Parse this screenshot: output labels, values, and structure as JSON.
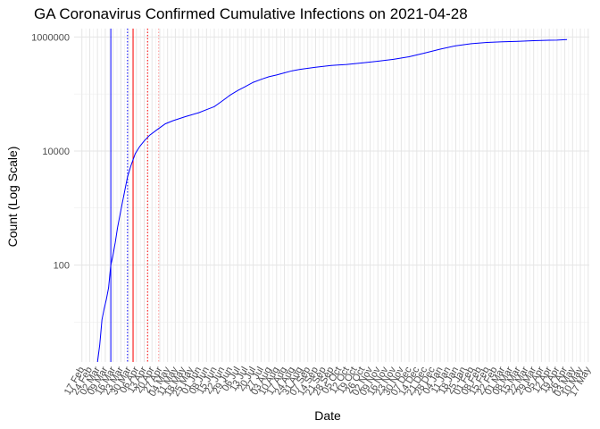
{
  "chart_data": {
    "type": "line",
    "title": "GA Coronavirus Confirmed Cumulative Infections on 2021-04-28",
    "xlabel": "Date",
    "ylabel": "Count (Log Scale)",
    "y_scale": "log10",
    "ylim": [
      2,
      1400000
    ],
    "xlim": [
      "2020-02-10",
      "2021-05-18"
    ],
    "grid": true,
    "colors": {
      "series": "#0000ff",
      "vline_blue": "#0000ff",
      "vline_red": "#ff0000",
      "minor_grid": "#ebebeb",
      "major_grid": "#e5e5e5"
    },
    "y_ticks": [
      {
        "value": 100,
        "label": "100"
      },
      {
        "value": 10000,
        "label": "10000"
      },
      {
        "value": 1000000,
        "label": "1000000"
      }
    ],
    "x_ticks": [
      {
        "date": "2020-02-17",
        "label": "17 Feb"
      },
      {
        "date": "2020-02-24",
        "label": "24 Feb"
      },
      {
        "date": "2020-03-02",
        "label": "02 Mar"
      },
      {
        "date": "2020-03-09",
        "label": "09 Mar"
      },
      {
        "date": "2020-03-16",
        "label": "16 Mar"
      },
      {
        "date": "2020-03-23",
        "label": "23 Mar"
      },
      {
        "date": "2020-03-30",
        "label": "30 Mar"
      },
      {
        "date": "2020-04-06",
        "label": "06 Apr"
      },
      {
        "date": "2020-04-13",
        "label": "13 Apr"
      },
      {
        "date": "2020-04-20",
        "label": "20 Apr"
      },
      {
        "date": "2020-04-27",
        "label": "27 Apr"
      },
      {
        "date": "2020-05-04",
        "label": "04 May"
      },
      {
        "date": "2020-05-11",
        "label": "11 May"
      },
      {
        "date": "2020-05-18",
        "label": "18 May"
      },
      {
        "date": "2020-05-25",
        "label": "25 May"
      },
      {
        "date": "2020-06-01",
        "label": "01 Jun"
      },
      {
        "date": "2020-06-08",
        "label": "08 Jun"
      },
      {
        "date": "2020-06-15",
        "label": "15 Jun"
      },
      {
        "date": "2020-06-22",
        "label": "22 Jun"
      },
      {
        "date": "2020-06-29",
        "label": "29 Jun"
      },
      {
        "date": "2020-07-06",
        "label": "06 Jul"
      },
      {
        "date": "2020-07-13",
        "label": "13 Jul"
      },
      {
        "date": "2020-07-20",
        "label": "20 Jul"
      },
      {
        "date": "2020-07-27",
        "label": "27 Jul"
      },
      {
        "date": "2020-08-03",
        "label": "03 Aug"
      },
      {
        "date": "2020-08-10",
        "label": "10 Aug"
      },
      {
        "date": "2020-08-17",
        "label": "17 Aug"
      },
      {
        "date": "2020-08-24",
        "label": "24 Aug"
      },
      {
        "date": "2020-08-31",
        "label": "31 Aug"
      },
      {
        "date": "2020-09-07",
        "label": "07 Sep"
      },
      {
        "date": "2020-09-14",
        "label": "14 Sep"
      },
      {
        "date": "2020-09-21",
        "label": "21 Sep"
      },
      {
        "date": "2020-09-28",
        "label": "28 Sep"
      },
      {
        "date": "2020-10-05",
        "label": "05 Oct"
      },
      {
        "date": "2020-10-12",
        "label": "12 Oct"
      },
      {
        "date": "2020-10-19",
        "label": "19 Oct"
      },
      {
        "date": "2020-10-26",
        "label": "26 Oct"
      },
      {
        "date": "2020-11-02",
        "label": "02 Nov"
      },
      {
        "date": "2020-11-09",
        "label": "09 Nov"
      },
      {
        "date": "2020-11-16",
        "label": "16 Nov"
      },
      {
        "date": "2020-11-23",
        "label": "23 Nov"
      },
      {
        "date": "2020-11-30",
        "label": "30 Nov"
      },
      {
        "date": "2020-12-07",
        "label": "07 Dec"
      },
      {
        "date": "2020-12-14",
        "label": "14 Dec"
      },
      {
        "date": "2020-12-21",
        "label": "21 Dec"
      },
      {
        "date": "2020-12-28",
        "label": "28 Dec"
      },
      {
        "date": "2021-01-04",
        "label": "04 Jan"
      },
      {
        "date": "2021-01-11",
        "label": "11 Jan"
      },
      {
        "date": "2021-01-18",
        "label": "18 Jan"
      },
      {
        "date": "2021-01-25",
        "label": "25 Jan"
      },
      {
        "date": "2021-02-01",
        "label": "01 Feb"
      },
      {
        "date": "2021-02-08",
        "label": "08 Feb"
      },
      {
        "date": "2021-02-15",
        "label": "15 Feb"
      },
      {
        "date": "2021-02-22",
        "label": "22 Feb"
      },
      {
        "date": "2021-03-01",
        "label": "01 Mar"
      },
      {
        "date": "2021-03-08",
        "label": "08 Mar"
      },
      {
        "date": "2021-03-15",
        "label": "15 Mar"
      },
      {
        "date": "2021-03-22",
        "label": "22 Mar"
      },
      {
        "date": "2021-03-29",
        "label": "29 Mar"
      },
      {
        "date": "2021-04-05",
        "label": "05 Apr"
      },
      {
        "date": "2021-04-12",
        "label": "12 Apr"
      },
      {
        "date": "2021-04-19",
        "label": "19 Apr"
      },
      {
        "date": "2021-04-26",
        "label": "26 Apr"
      },
      {
        "date": "2021-05-03",
        "label": "03 May"
      },
      {
        "date": "2021-05-10",
        "label": "10 May"
      },
      {
        "date": "2021-05-17",
        "label": "17 May"
      }
    ],
    "vlines": [
      {
        "date": "2020-03-14",
        "color": "#0000ff",
        "style": "solid"
      },
      {
        "date": "2020-03-29",
        "color": "#0000ff",
        "style": "dotted"
      },
      {
        "date": "2020-04-03",
        "color": "#ff0000",
        "style": "solid"
      },
      {
        "date": "2020-04-16",
        "color": "#ff0000",
        "style": "dotted"
      },
      {
        "date": "2020-04-26",
        "color": "#ff9999",
        "style": "dotted"
      }
    ],
    "series": [
      {
        "color": "#0000ff",
        "points": [
          [
            "2020-03-02",
            2
          ],
          [
            "2020-03-04",
            4
          ],
          [
            "2020-03-06",
            11
          ],
          [
            "2020-03-08",
            17
          ],
          [
            "2020-03-10",
            25
          ],
          [
            "2020-03-12",
            40
          ],
          [
            "2020-03-14",
            100
          ],
          [
            "2020-03-16",
            150
          ],
          [
            "2020-03-18",
            250
          ],
          [
            "2020-03-20",
            450
          ],
          [
            "2020-03-23",
            900
          ],
          [
            "2020-03-26",
            1800
          ],
          [
            "2020-03-29",
            3500
          ],
          [
            "2020-04-01",
            5500
          ],
          [
            "2020-04-05",
            9000
          ],
          [
            "2020-04-09",
            12000
          ],
          [
            "2020-04-13",
            15000
          ],
          [
            "2020-04-18",
            19000
          ],
          [
            "2020-04-25",
            24000
          ],
          [
            "2020-05-02",
            30000
          ],
          [
            "2020-05-09",
            34000
          ],
          [
            "2020-05-20",
            40000
          ],
          [
            "2020-06-01",
            47000
          ],
          [
            "2020-06-08",
            53000
          ],
          [
            "2020-06-15",
            60000
          ],
          [
            "2020-06-22",
            75000
          ],
          [
            "2020-06-29",
            95000
          ],
          [
            "2020-07-06",
            115000
          ],
          [
            "2020-07-13",
            135000
          ],
          [
            "2020-07-20",
            160000
          ],
          [
            "2020-07-27",
            180000
          ],
          [
            "2020-08-03",
            200000
          ],
          [
            "2020-08-10",
            215000
          ],
          [
            "2020-08-17",
            235000
          ],
          [
            "2020-08-24",
            255000
          ],
          [
            "2020-08-31",
            270000
          ],
          [
            "2020-09-14",
            295000
          ],
          [
            "2020-09-28",
            315000
          ],
          [
            "2020-10-12",
            330000
          ],
          [
            "2020-10-26",
            350000
          ],
          [
            "2020-11-09",
            375000
          ],
          [
            "2020-11-23",
            405000
          ],
          [
            "2020-12-07",
            450000
          ],
          [
            "2020-12-21",
            520000
          ],
          [
            "2021-01-04",
            610000
          ],
          [
            "2021-01-18",
            700000
          ],
          [
            "2021-02-01",
            760000
          ],
          [
            "2021-02-15",
            800000
          ],
          [
            "2021-03-01",
            820000
          ],
          [
            "2021-03-15",
            840000
          ],
          [
            "2021-03-29",
            860000
          ],
          [
            "2021-04-12",
            875000
          ],
          [
            "2021-04-19",
            880000
          ],
          [
            "2021-04-28",
            900000
          ]
        ]
      }
    ]
  }
}
